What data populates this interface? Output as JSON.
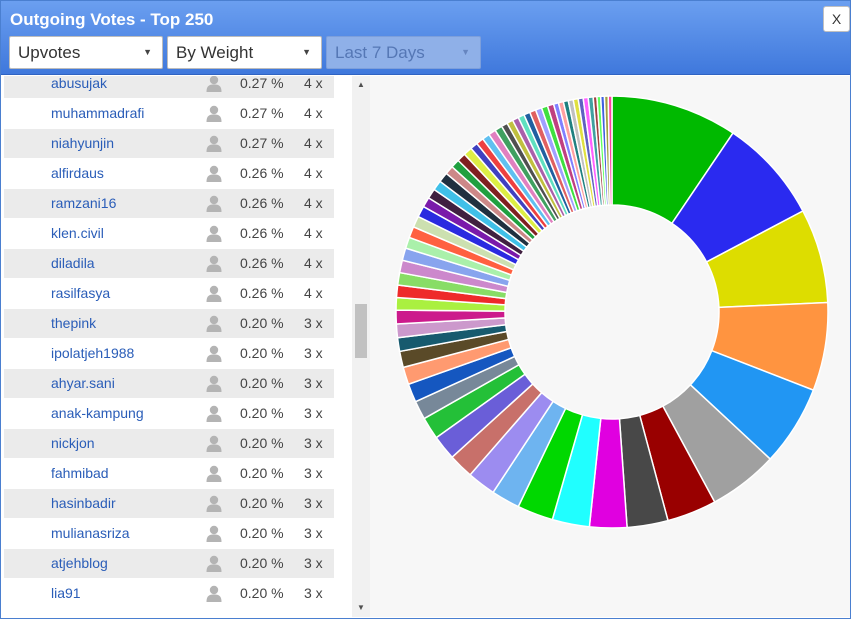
{
  "header": {
    "title": "Outgoing Votes - Top 250",
    "close_label": "X",
    "filters": {
      "vote_type": "Upvotes",
      "sort": "By Weight",
      "period": "Last 7 Days"
    }
  },
  "icons": {
    "user": "user-silhouette-icon",
    "scroll_up": "arrow-up-icon",
    "scroll_down": "arrow-down-icon"
  },
  "rows": [
    {
      "name": "abusujak",
      "pct": "0.27 %",
      "count": "4 x"
    },
    {
      "name": "muhammadrafi",
      "pct": "0.27 %",
      "count": "4 x"
    },
    {
      "name": "niahyunjin",
      "pct": "0.27 %",
      "count": "4 x"
    },
    {
      "name": "alfirdaus",
      "pct": "0.26 %",
      "count": "4 x"
    },
    {
      "name": "ramzani16",
      "pct": "0.26 %",
      "count": "4 x"
    },
    {
      "name": "klen.civil",
      "pct": "0.26 %",
      "count": "4 x"
    },
    {
      "name": "diladila",
      "pct": "0.26 %",
      "count": "4 x"
    },
    {
      "name": "rasilfasya",
      "pct": "0.26 %",
      "count": "4 x"
    },
    {
      "name": "thepink",
      "pct": "0.20 %",
      "count": "3 x"
    },
    {
      "name": "ipolatjeh1988",
      "pct": "0.20 %",
      "count": "3 x"
    },
    {
      "name": "ahyar.sani",
      "pct": "0.20 %",
      "count": "3 x"
    },
    {
      "name": "anak-kampung",
      "pct": "0.20 %",
      "count": "3 x"
    },
    {
      "name": "nickjon",
      "pct": "0.20 %",
      "count": "3 x"
    },
    {
      "name": "fahmibad",
      "pct": "0.20 %",
      "count": "3 x"
    },
    {
      "name": "hasinbadir",
      "pct": "0.20 %",
      "count": "3 x"
    },
    {
      "name": "mulianasriza",
      "pct": "0.20 %",
      "count": "3 x"
    },
    {
      "name": "atjehblog",
      "pct": "0.20 %",
      "count": "3 x"
    },
    {
      "name": "lia91",
      "pct": "0.20 %",
      "count": "3 x"
    }
  ],
  "chart_data": {
    "type": "pie",
    "donut": true,
    "legend": "none",
    "values": [
      10.2,
      8.4,
      7.6,
      7.1,
      6.5,
      5.6,
      4.0,
      3.3,
      3.0,
      3.0,
      2.9,
      2.3,
      2.3,
      2.0,
      2.0,
      1.8,
      1.5,
      1.5,
      1.4,
      1.3,
      1.1,
      1.1,
      1.1,
      1.0,
      1.0,
      1.0,
      1.0,
      1.0,
      0.9,
      0.9,
      0.9,
      0.9,
      0.8,
      0.8,
      0.8,
      0.8,
      0.7,
      0.7,
      0.7,
      0.7,
      0.6,
      0.6,
      0.6,
      0.6,
      0.6,
      0.5,
      0.5,
      0.5,
      0.5,
      0.5,
      0.5,
      0.5,
      0.5,
      0.5,
      0.4,
      0.4,
      0.4,
      0.4,
      0.4,
      0.4,
      0.4,
      0.4,
      0.3,
      0.3,
      0.3,
      0.3,
      0.3
    ],
    "colors": [
      "#00b900",
      "#2a2af0",
      "#dddd00",
      "#ff9440",
      "#2196f3",
      "#a0a0a0",
      "#990000",
      "#484848",
      "#e000e0",
      "#20ffff",
      "#00d800",
      "#6eb4f0",
      "#9c8cf0",
      "#c8706a",
      "#6a5ed8",
      "#24c038",
      "#778899",
      "#1557c0",
      "#ff9a70",
      "#5a4a28",
      "#175a6e",
      "#cc99cc",
      "#cc1a8c",
      "#aaf040",
      "#ee2a2a",
      "#88dd66",
      "#cc88cc",
      "#88a4ee",
      "#aaf0aa",
      "#ff6040",
      "#cce0b0",
      "#2a2ae0",
      "#7a1aaa",
      "#402040",
      "#40c0e8",
      "#203040",
      "#cc8888",
      "#20a040",
      "#802020",
      "#ddee44",
      "#4040c0",
      "#ee4040",
      "#60c0f0",
      "#e080c0",
      "#40a060",
      "#505050",
      "#c0c040",
      "#aa60aa",
      "#60e0c0",
      "#2060a0",
      "#e06060",
      "#a0a0ff",
      "#40e040",
      "#c04080",
      "#8080ff",
      "#ffa0a0",
      "#208080",
      "#c0c0c0",
      "#e0e040",
      "#6060c0",
      "#ff60ff",
      "#40a0a0",
      "#a04040",
      "#60ff60",
      "#4060e0",
      "#a0a040",
      "#ff40a0"
    ]
  }
}
